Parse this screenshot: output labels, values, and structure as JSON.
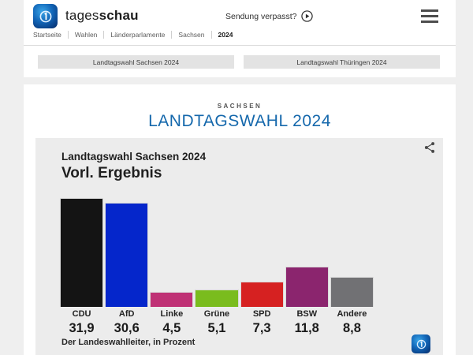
{
  "header": {
    "brand": {
      "name_regular": "tages",
      "name_bold": "schau"
    },
    "sendung_verpasst_label": "Sendung verpasst?",
    "breadcrumb": [
      "Startseite",
      "Wahlen",
      "Länderparlamente",
      "Sachsen",
      "2024"
    ],
    "tabs": [
      "Landtagswahl Sachsen 2024",
      "Landtagswahl Thüringen 2024"
    ]
  },
  "main": {
    "kicker": "SACHSEN",
    "title": "LANDTAGSWAHL 2024",
    "title_color": "#1568ac"
  },
  "chart_card": {
    "subtitle": "Landtagswahl Sachsen 2024",
    "title": "Vorl. Ergebnis",
    "source": "Der Landeswahlleiter, in Prozent"
  },
  "icons": {
    "brand_logo": "tagesschau-globe-icon",
    "play": "play-circle-icon",
    "menu": "hamburger-menu-icon",
    "share": "share-icon",
    "chart_corner_logo": "tagesschau-globe-icon"
  },
  "chart_data": {
    "type": "bar",
    "title": "Vorl. Ergebnis",
    "subtitle": "Landtagswahl Sachsen 2024",
    "categories": [
      "CDU",
      "AfD",
      "Linke",
      "Grüne",
      "SPD",
      "BSW",
      "Andere"
    ],
    "values": [
      31.9,
      30.6,
      4.5,
      5.1,
      7.3,
      11.8,
      8.8
    ],
    "value_labels": [
      "31,9",
      "30,6",
      "4,5",
      "5,1",
      "7,3",
      "11,8",
      "8,8"
    ],
    "colors": [
      "#141414",
      "#0526cb",
      "#bf3175",
      "#7abc1e",
      "#d62121",
      "#8b256e",
      "#717174"
    ],
    "unit": "Prozent",
    "source": "Der Landeswahlleiter, in Prozent",
    "ylim": [
      0,
      32
    ],
    "grid": false,
    "legend": false
  }
}
